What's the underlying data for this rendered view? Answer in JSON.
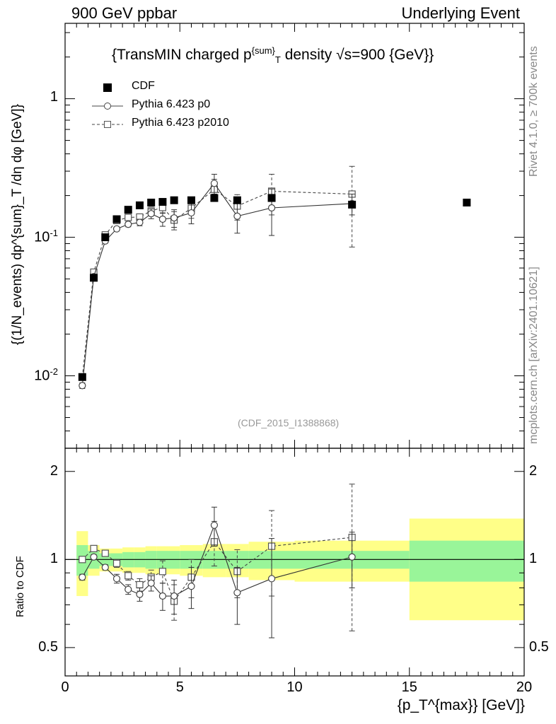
{
  "header": {
    "left": "900 GeV ppbar",
    "right": "Underlying Event"
  },
  "side_labels": {
    "rivet": "Rivet 4.1.0, ≥ 700k events",
    "mcplots": "mcplots.cern.ch [arXiv:2401.10621]"
  },
  "chart_data": {
    "type": "scatter",
    "title": "{TransMIN charged p^{sum}_T density √s=900 {GeV}}",
    "title_parts": {
      "a": "{TransMIN charged p",
      "sup": "{sum}",
      "sub": "T",
      "b": " density √s=900 {GeV}}"
    },
    "analysis_tag": "(CDF_2015_I1388868)",
    "ylabel": "{(1/N_events) dp^{sum}_T /dη dφ [GeV]}",
    "xlabel": "{p_T^{max}} [GeV]}",
    "ratio_ylabel": "Ratio to CDF",
    "xlim": [
      0,
      20
    ],
    "ylim": [
      0.003,
      3.5
    ],
    "yscale": "log",
    "ratio_ylim": [
      0.4,
      2.4
    ],
    "ratio_yscale": "log",
    "x_ticks": [
      "0",
      "5",
      "10",
      "15",
      "20"
    ],
    "y_ticks": [
      "10^-2",
      "10^-1",
      "1"
    ],
    "ratio_y_ticks": [
      "0.5",
      "1",
      "2"
    ],
    "legend_position": "top-left",
    "series": [
      {
        "name": "CDF",
        "style": "data",
        "x": [
          0.75,
          1.25,
          1.75,
          2.25,
          2.75,
          3.25,
          3.75,
          4.25,
          4.75,
          5.5,
          6.5,
          7.5,
          9.0,
          12.5,
          17.5
        ],
        "y": [
          0.0098,
          0.051,
          0.1,
          0.135,
          0.158,
          0.17,
          0.178,
          0.18,
          0.185,
          0.185,
          0.192,
          0.185,
          0.192,
          0.172,
          0.178
        ],
        "ratio_band_x": [
          0.5,
          1.0,
          1.5,
          2.0,
          2.5,
          3.0,
          3.5,
          4.0,
          4.5,
          5.0,
          6.0,
          7.0,
          8.0,
          10.0,
          15.0,
          20.0
        ],
        "ratio_green": [
          0.12,
          0.07,
          0.05,
          0.05,
          0.06,
          0.06,
          0.07,
          0.07,
          0.07,
          0.07,
          0.07,
          0.07,
          0.07,
          0.07,
          0.16
        ],
        "ratio_yellow": [
          0.25,
          0.12,
          0.09,
          0.09,
          0.1,
          0.1,
          0.11,
          0.11,
          0.11,
          0.12,
          0.13,
          0.13,
          0.15,
          0.16,
          0.38
        ]
      },
      {
        "name": "Pythia 6.423 p0",
        "style": "solid-circle",
        "x": [
          0.75,
          1.25,
          1.75,
          2.25,
          2.75,
          3.25,
          3.75,
          4.25,
          4.75,
          5.5,
          6.5,
          7.5,
          9.0,
          12.5
        ],
        "y": [
          0.0085,
          0.052,
          0.094,
          0.115,
          0.124,
          0.128,
          0.148,
          0.135,
          0.138,
          0.15,
          0.245,
          0.142,
          0.163,
          0.175
        ],
        "yerr": [
          0.0004,
          0.002,
          0.003,
          0.004,
          0.005,
          0.007,
          0.012,
          0.015,
          0.02,
          0.025,
          0.04,
          0.035,
          0.06,
          0.03
        ],
        "ratio": [
          0.87,
          1.02,
          0.94,
          0.86,
          0.79,
          0.76,
          0.83,
          0.75,
          0.75,
          0.81,
          1.31,
          0.77,
          0.86,
          1.02
        ],
        "ratio_err": [
          0.02,
          0.02,
          0.02,
          0.03,
          0.03,
          0.04,
          0.05,
          0.08,
          0.1,
          0.13,
          0.2,
          0.17,
          0.32,
          0.22
        ]
      },
      {
        "name": "Pythia 6.423 p2010",
        "style": "dashed-square",
        "x": [
          0.75,
          1.25,
          1.75,
          2.25,
          2.75,
          3.25,
          3.75,
          4.25,
          4.75,
          5.5,
          6.5,
          7.5,
          9.0,
          12.5
        ],
        "y": [
          0.0098,
          0.056,
          0.104,
          0.132,
          0.139,
          0.14,
          0.155,
          0.164,
          0.133,
          0.162,
          0.222,
          0.168,
          0.215,
          0.205
        ],
        "yerr": [
          0.0004,
          0.002,
          0.003,
          0.004,
          0.005,
          0.007,
          0.012,
          0.015,
          0.02,
          0.025,
          0.04,
          0.035,
          0.07,
          0.12
        ],
        "ratio": [
          1.0,
          1.09,
          1.05,
          0.97,
          0.88,
          0.82,
          0.87,
          0.91,
          0.72,
          0.87,
          1.15,
          0.91,
          1.11,
          1.19
        ],
        "ratio_err": [
          0.02,
          0.02,
          0.02,
          0.03,
          0.03,
          0.04,
          0.05,
          0.08,
          0.1,
          0.13,
          0.2,
          0.17,
          0.36,
          0.62
        ]
      }
    ]
  }
}
